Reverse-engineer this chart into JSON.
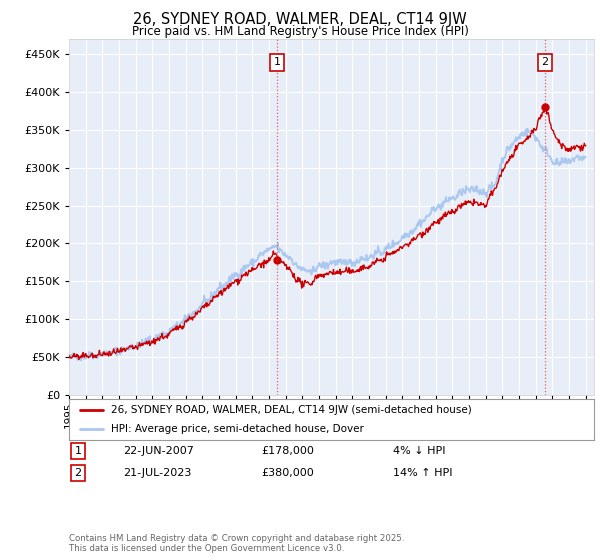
{
  "title": "26, SYDNEY ROAD, WALMER, DEAL, CT14 9JW",
  "subtitle": "Price paid vs. HM Land Registry's House Price Index (HPI)",
  "ytick_values": [
    0,
    50000,
    100000,
    150000,
    200000,
    250000,
    300000,
    350000,
    400000,
    450000
  ],
  "ylim": [
    0,
    470000
  ],
  "xlim_start": 1995.0,
  "xlim_end": 2026.5,
  "hpi_color": "#aac8f0",
  "price_color": "#cc0000",
  "marker1_x": 2007.47,
  "marker1_y": 178000,
  "marker1_label": "1",
  "marker2_x": 2023.55,
  "marker2_y": 380000,
  "marker2_label": "2",
  "legend_line1": "26, SYDNEY ROAD, WALMER, DEAL, CT14 9JW (semi-detached house)",
  "legend_line2": "HPI: Average price, semi-detached house, Dover",
  "annotation1_num": "1",
  "annotation1_date": "22-JUN-2007",
  "annotation1_price": "£178,000",
  "annotation1_change": "4% ↓ HPI",
  "annotation2_num": "2",
  "annotation2_date": "21-JUL-2023",
  "annotation2_price": "£380,000",
  "annotation2_change": "14% ↑ HPI",
  "footer": "Contains HM Land Registry data © Crown copyright and database right 2025.\nThis data is licensed under the Open Government Licence v3.0.",
  "background_color": "#ffffff",
  "plot_bg_color": "#e8eef8",
  "grid_color": "#ffffff"
}
